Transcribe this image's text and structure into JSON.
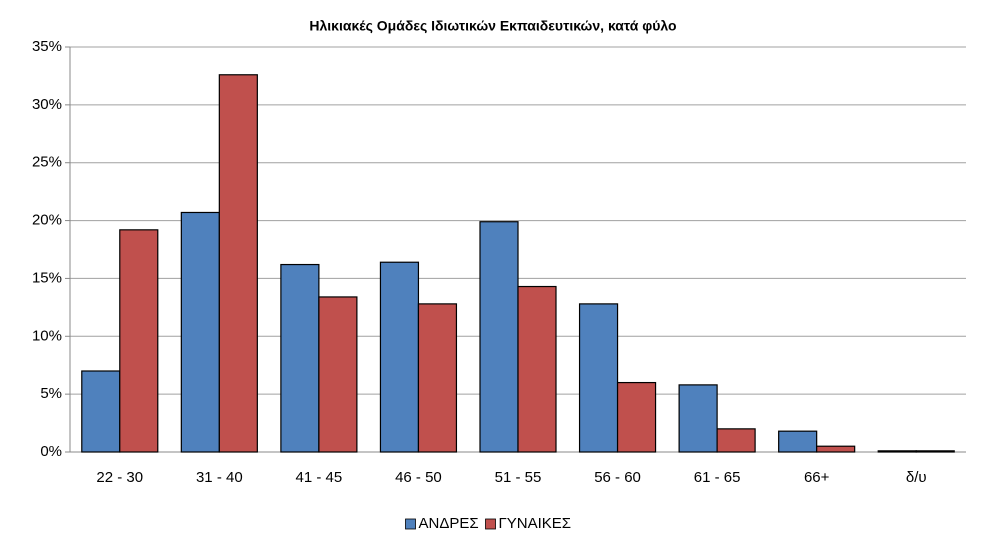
{
  "chart_data": {
    "type": "bar",
    "title": "Ηλικιακές Ομάδες Ιδιωτικών Εκπαιδευτικών, κατά φύλο",
    "categories": [
      "22 - 30",
      "31 - 40",
      "41 - 45",
      "46 - 50",
      "51 - 55",
      "56 - 60",
      "61 - 65",
      "66+",
      "δ/υ"
    ],
    "series": [
      {
        "name": "ΑΝΔΡΕΣ",
        "color": "#4f81bd",
        "values": [
          7.0,
          20.7,
          16.2,
          16.4,
          19.9,
          12.8,
          5.8,
          1.8,
          0.1
        ]
      },
      {
        "name": "ΓΥΝΑΙΚΕΣ",
        "color": "#c0504d",
        "values": [
          19.2,
          32.6,
          13.4,
          12.8,
          14.3,
          6.0,
          2.0,
          0.5,
          0.1
        ]
      }
    ],
    "ylim": [
      0,
      35
    ],
    "yticks": [
      {
        "value": 0,
        "label": "0%"
      },
      {
        "value": 5,
        "label": "5%"
      },
      {
        "value": 10,
        "label": "10%"
      },
      {
        "value": 15,
        "label": "15%"
      },
      {
        "value": 20,
        "label": "20%"
      },
      {
        "value": 25,
        "label": "25%"
      },
      {
        "value": 30,
        "label": "30%"
      },
      {
        "value": 35,
        "label": "35%"
      }
    ],
    "grid": true,
    "legend": "bottom"
  }
}
